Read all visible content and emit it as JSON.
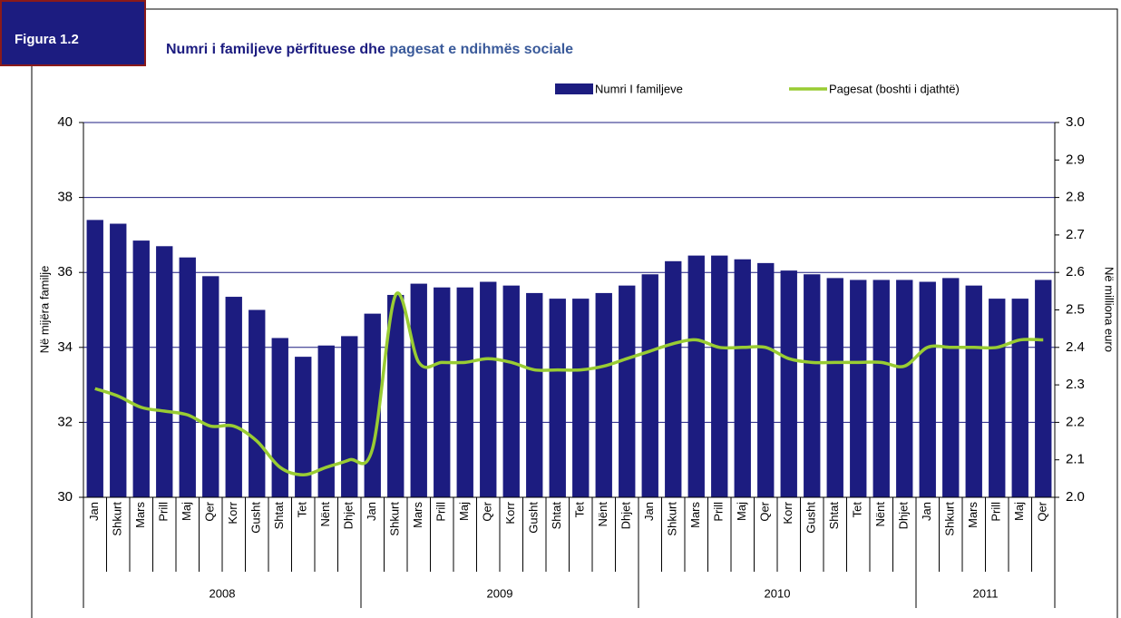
{
  "chart_data": {
    "type": "bar_line",
    "figure_label": "Figura 1.2",
    "title_parts": [
      "Numri i familjeve përfituese dhe",
      "pagesat e ndihmës sociale"
    ],
    "ylabel": "Në mijëra familje",
    "y2label": "Në milliona euro",
    "categories": [
      "Jan",
      "Shkurt",
      "Mars",
      "Prill",
      "Maj",
      "Qer",
      "Korr",
      "Gusht",
      "Shtat",
      "Tet",
      "Nënt",
      "Dhjet",
      "Jan",
      "Shkurt",
      "Mars",
      "Prill",
      "Maj",
      "Qer",
      "Korr",
      "Gusht",
      "Shtat",
      "Tet",
      "Nënt",
      "Dhjet",
      "Jan",
      "Shkurt",
      "Mars",
      "Prill",
      "Maj",
      "Qer",
      "Korr",
      "Gusht",
      "Shtat",
      "Tet",
      "Nënt",
      "Dhjet",
      "Jan",
      "Shkurt",
      "Mars",
      "Prill",
      "Maj",
      "Qer"
    ],
    "years": [
      {
        "name": "2008",
        "span": 12
      },
      {
        "name": "2009",
        "span": 12
      },
      {
        "name": "2010",
        "span": 12
      },
      {
        "name": "2011",
        "span": 6
      }
    ],
    "series": [
      {
        "name": "Numri I familjeve",
        "type": "bar",
        "color": "#1c1c80",
        "values": [
          37.4,
          37.3,
          36.85,
          36.7,
          36.4,
          35.9,
          35.35,
          35.0,
          34.25,
          33.75,
          34.05,
          34.3,
          34.9,
          35.4,
          35.7,
          35.6,
          35.6,
          35.75,
          35.65,
          35.45,
          35.3,
          35.3,
          35.45,
          35.65,
          35.95,
          36.3,
          36.45,
          36.45,
          36.35,
          36.25,
          36.05,
          35.95,
          35.85,
          35.8,
          35.8,
          35.8,
          35.75,
          35.85,
          35.65,
          35.3,
          35.3,
          35.8
        ]
      },
      {
        "name": "Pagesat (boshti i djathtë)",
        "type": "line",
        "axis": "y2",
        "color": "#99cc33",
        "values": [
          2.29,
          2.27,
          2.24,
          2.23,
          2.22,
          2.19,
          2.19,
          2.15,
          2.08,
          2.06,
          2.08,
          2.1,
          2.13,
          2.54,
          2.36,
          2.36,
          2.36,
          2.37,
          2.36,
          2.34,
          2.34,
          2.34,
          2.35,
          2.37,
          2.39,
          2.41,
          2.42,
          2.4,
          2.4,
          2.4,
          2.37,
          2.36,
          2.36,
          2.36,
          2.36,
          2.35,
          2.4,
          2.4,
          2.4,
          2.4,
          2.42,
          2.42
        ]
      }
    ],
    "ylim": [
      30,
      40
    ],
    "yticks": [
      30,
      32,
      34,
      36,
      38,
      40
    ],
    "y2lim": [
      2.0,
      3.0
    ],
    "y2ticks": [
      {
        "value": 2,
        "label": "2.0"
      },
      2.1,
      2.2,
      2.3,
      2.4,
      2.5,
      2.6,
      2.7,
      2.8,
      2.9,
      {
        "value": 3,
        "label": "3.0"
      }
    ],
    "grid": true
  }
}
